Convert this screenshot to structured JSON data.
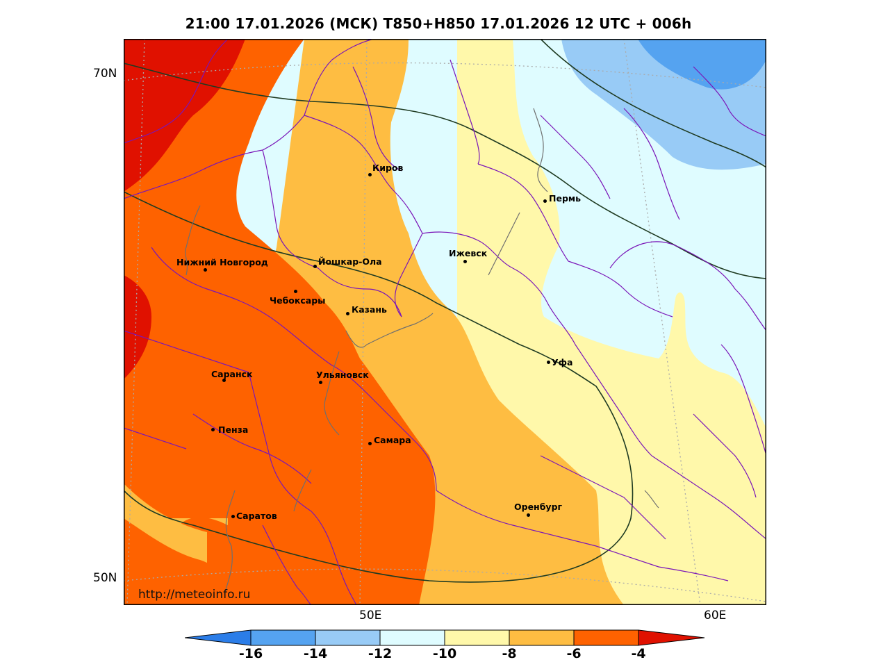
{
  "title": "21:00 17.01.2026 (МСК) T850+H850 17.01.2026 12 UTC + 006h",
  "credit": "http://meteoinfo.ru",
  "lat_labels": {
    "north": "70N",
    "south": "50N"
  },
  "lon_labels": {
    "left": "50E",
    "right": "60E"
  },
  "cities": [
    {
      "name": "Киров"
    },
    {
      "name": "Пермь"
    },
    {
      "name": "Ижевск"
    },
    {
      "name": "Йошкар-Ола"
    },
    {
      "name": "Нижний Новгород"
    },
    {
      "name": "Чебоксары"
    },
    {
      "name": "Казань"
    },
    {
      "name": "Уфа"
    },
    {
      "name": "Саранск"
    },
    {
      "name": "Ульяновск"
    },
    {
      "name": "Пенза"
    },
    {
      "name": "Самара"
    },
    {
      "name": "Оренбург"
    },
    {
      "name": "Саратов"
    }
  ],
  "colorbar": {
    "labels": [
      "-16",
      "-14",
      "-12",
      "-10",
      "-8",
      "-6",
      "-4"
    ],
    "colors": {
      "below_-16": "#2b7de8",
      "-16_-14": "#55a3f0",
      "-14_-12": "#98cbf6",
      "-12_-10": "#dffcff",
      "-10_-8": "#fff8aa",
      "-8_-6": "#febd42",
      "-6_-4": "#fe6200",
      "above_-4": "#e01100"
    }
  }
}
